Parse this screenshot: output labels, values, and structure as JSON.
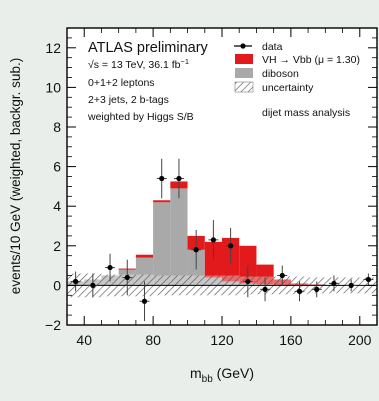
{
  "chart_data": {
    "type": "bar",
    "title": "ATLAS  preliminary",
    "xlabel": "m",
    "xlabel_sub": "bb",
    "xlabel_unit": " (GeV)",
    "ylabel": "events/10 GeV (weighted, backgr. sub.)",
    "xlim": [
      30,
      210
    ],
    "ylim": [
      -2,
      13
    ],
    "xticks": [
      40,
      80,
      120,
      160,
      200
    ],
    "yticks": [
      -2,
      0,
      2,
      4,
      6,
      8,
      10,
      12
    ],
    "info_lines": [
      "√s = 13 TeV, 36.1 fb",
      "0+1+2 leptons",
      "2+3 jets, 2 b-tags",
      "weighted by Higgs S/B"
    ],
    "lumi_superscript": "−1",
    "annotation": "dijet mass analysis",
    "legend": {
      "placement": "top-right",
      "entries": [
        {
          "key": "data",
          "label": "data",
          "style": "marker"
        },
        {
          "key": "vh",
          "label": "VH → Vbb (μ = 1.30)",
          "style": "fill",
          "color": "#e31a1c"
        },
        {
          "key": "diboson",
          "label": "diboson",
          "style": "fill",
          "color": "#a9a9a9"
        },
        {
          "key": "unc",
          "label": "uncertainty",
          "style": "hatch"
        }
      ]
    },
    "bin_edges": [
      30,
      40,
      50,
      60,
      70,
      80,
      90,
      100,
      110,
      120,
      130,
      140,
      150,
      160,
      170,
      180,
      190,
      200,
      210
    ],
    "series": [
      {
        "name": "diboson",
        "values": [
          0.2,
          0.3,
          0.5,
          0.8,
          1.4,
          4.2,
          4.9,
          1.8,
          0.4,
          0.2,
          0.1,
          0.05,
          0.0,
          0.0,
          0.0,
          0.0,
          0.0,
          0.0
        ]
      },
      {
        "name": "VH → Vbb (μ = 1.30)",
        "values": [
          0.0,
          0.0,
          0.0,
          0.05,
          0.15,
          0.1,
          0.35,
          0.7,
          1.8,
          2.2,
          1.9,
          1.0,
          0.3,
          0.1,
          0.05,
          0.0,
          0.0,
          0.0
        ]
      },
      {
        "name": "uncertainty",
        "values": [
          0.6,
          0.6,
          0.55,
          0.55,
          0.55,
          0.5,
          0.5,
          0.5,
          0.5,
          0.5,
          0.45,
          0.45,
          0.45,
          0.45,
          0.4,
          0.4,
          0.4,
          0.4
        ]
      }
    ],
    "data_points": {
      "name": "data",
      "x": [
        35,
        45,
        55,
        65,
        75,
        85,
        95,
        105,
        115,
        125,
        135,
        145,
        155,
        165,
        175,
        185,
        195,
        205
      ],
      "y": [
        0.2,
        0.0,
        0.9,
        0.4,
        -0.8,
        5.4,
        5.4,
        1.8,
        2.3,
        2.0,
        0.2,
        -0.2,
        0.5,
        -0.3,
        -0.2,
        0.1,
        0.0,
        0.3
      ],
      "yerr": [
        0.5,
        0.6,
        0.7,
        0.9,
        1.0,
        1.0,
        1.0,
        1.0,
        1.0,
        0.9,
        0.8,
        0.6,
        0.5,
        0.5,
        0.4,
        0.4,
        0.3,
        0.3
      ]
    }
  }
}
